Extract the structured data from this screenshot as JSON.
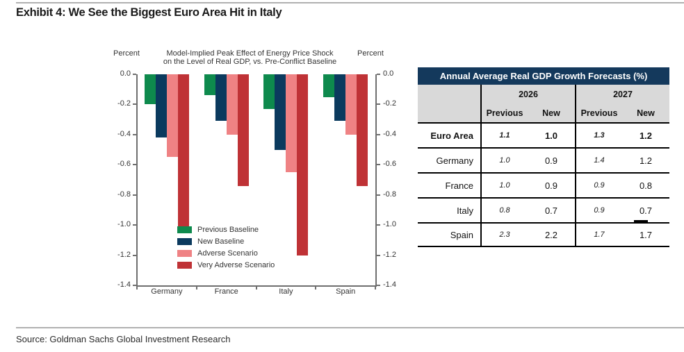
{
  "exhibit": {
    "title": "Exhibit 4: We See the Biggest Euro Area Hit in Italy",
    "source": "Source: Goldman Sachs Global Investment Research"
  },
  "chart_data": {
    "type": "bar",
    "title_lines": [
      "Model-Implied Peak Effect of Energy Price Shock",
      "on the Level of Real GDP, vs. Pre-Conflict Baseline"
    ],
    "left_axis_label": "Percent",
    "right_axis_label": "Percent",
    "categories": [
      "Germany",
      "France",
      "Italy",
      "Spain"
    ],
    "series": [
      {
        "name": "Previous Baseline",
        "color": "#0E8A4D",
        "values": [
          -0.2,
          -0.14,
          -0.23,
          -0.15
        ]
      },
      {
        "name": "New Baseline",
        "color": "#0B3A5E",
        "values": [
          -0.42,
          -0.31,
          -0.5,
          -0.31
        ]
      },
      {
        "name": "Adverse Scenario",
        "color": "#EF8284",
        "values": [
          -0.55,
          -0.4,
          -0.65,
          -0.4
        ]
      },
      {
        "name": "Very Adverse Scenario",
        "color": "#BF3236",
        "values": [
          -1.02,
          -0.74,
          -1.2,
          -0.74
        ]
      }
    ],
    "ylim": [
      -1.4,
      0.0
    ],
    "yticks": [
      "0.0",
      "-0.2",
      "-0.4",
      "-0.6",
      "-0.8",
      "-1.0",
      "-1.2",
      "-1.4"
    ],
    "grid": false,
    "legend_position": "inside-bottom-left"
  },
  "table": {
    "title": "Annual Average Real GDP Growth Forecasts (%)",
    "year_groups": [
      "2026",
      "2027"
    ],
    "sub_headers": [
      "Previous",
      "New",
      "Previous",
      "New"
    ],
    "rows": [
      {
        "label": "Euro Area",
        "values": [
          "1.1",
          "1.0",
          "1.3",
          "1.2"
        ]
      },
      {
        "label": "Germany",
        "values": [
          "1.0",
          "0.9",
          "1.4",
          "1.2"
        ]
      },
      {
        "label": "France",
        "values": [
          "1.0",
          "0.9",
          "0.9",
          "0.8"
        ]
      },
      {
        "label": "Italy",
        "values": [
          "0.8",
          "0.7",
          "0.9",
          "0.7"
        ]
      },
      {
        "label": "Spain",
        "values": [
          "2.3",
          "2.2",
          "1.7",
          "1.7"
        ]
      }
    ]
  },
  "colors": {
    "table_header_bg": "#14395C",
    "table_subheader_bg": "#D9D9D9",
    "rule": "#B0B0B0",
    "axis": "#6E6E6E"
  }
}
